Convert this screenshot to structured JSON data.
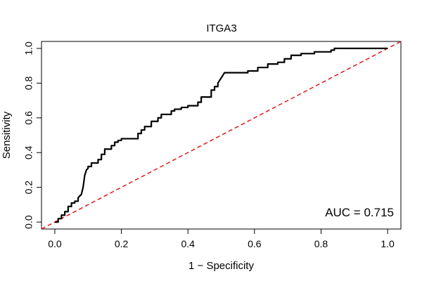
{
  "chart_data": {
    "type": "line",
    "title": "ITGA3",
    "xlabel": "1 − Specificity",
    "ylabel": "Sensitivity",
    "xlim": [
      -0.04,
      1.04
    ],
    "ylim": [
      -0.04,
      1.04
    ],
    "x_ticks": [
      0.0,
      0.2,
      0.4,
      0.6,
      0.8,
      1.0
    ],
    "x_tick_labels": [
      "0.0",
      "0.2",
      "0.4",
      "0.6",
      "0.8",
      "1.0"
    ],
    "y_ticks": [
      0.0,
      0.2,
      0.4,
      0.6,
      0.8,
      1.0
    ],
    "y_tick_labels": [
      "0.0",
      "0.2",
      "0.4",
      "0.6",
      "0.8",
      "1.0"
    ],
    "grid": false,
    "annotation": "AUC = 0.715",
    "series": [
      {
        "name": "ROC curve",
        "color": "#000000",
        "style": "solid",
        "x": [
          0.0,
          0.01,
          0.01,
          0.02,
          0.02,
          0.03,
          0.03,
          0.04,
          0.04,
          0.05,
          0.05,
          0.06,
          0.06,
          0.07,
          0.07,
          0.08,
          0.085,
          0.09,
          0.095,
          0.1,
          0.1,
          0.11,
          0.11,
          0.13,
          0.13,
          0.14,
          0.14,
          0.15,
          0.15,
          0.17,
          0.17,
          0.18,
          0.18,
          0.19,
          0.19,
          0.2,
          0.2,
          0.25,
          0.25,
          0.26,
          0.26,
          0.27,
          0.27,
          0.29,
          0.29,
          0.31,
          0.31,
          0.32,
          0.32,
          0.35,
          0.35,
          0.36,
          0.36,
          0.38,
          0.38,
          0.4,
          0.4,
          0.43,
          0.43,
          0.44,
          0.44,
          0.47,
          0.47,
          0.48,
          0.48,
          0.49,
          0.49,
          0.5,
          0.51,
          0.51,
          0.58,
          0.58,
          0.61,
          0.61,
          0.64,
          0.64,
          0.67,
          0.67,
          0.69,
          0.69,
          0.71,
          0.71,
          0.74,
          0.74,
          0.78,
          0.78,
          0.83,
          0.83,
          0.84,
          0.84,
          1.0
        ],
        "y": [
          0.0,
          0.0,
          0.02,
          0.02,
          0.04,
          0.04,
          0.06,
          0.06,
          0.09,
          0.09,
          0.11,
          0.11,
          0.12,
          0.12,
          0.14,
          0.16,
          0.2,
          0.27,
          0.3,
          0.31,
          0.32,
          0.32,
          0.34,
          0.34,
          0.36,
          0.36,
          0.39,
          0.39,
          0.42,
          0.42,
          0.44,
          0.44,
          0.46,
          0.46,
          0.47,
          0.47,
          0.48,
          0.48,
          0.51,
          0.51,
          0.53,
          0.53,
          0.55,
          0.55,
          0.58,
          0.58,
          0.6,
          0.6,
          0.62,
          0.62,
          0.64,
          0.64,
          0.65,
          0.65,
          0.66,
          0.66,
          0.67,
          0.67,
          0.69,
          0.69,
          0.72,
          0.72,
          0.76,
          0.76,
          0.78,
          0.78,
          0.8,
          0.83,
          0.86,
          0.86,
          0.86,
          0.87,
          0.87,
          0.89,
          0.89,
          0.91,
          0.91,
          0.92,
          0.92,
          0.94,
          0.94,
          0.96,
          0.96,
          0.97,
          0.97,
          0.98,
          0.98,
          0.99,
          0.99,
          1.0,
          1.0
        ]
      },
      {
        "name": "Reference diagonal",
        "color": "#e41a1c",
        "style": "dashed",
        "x": [
          -0.04,
          1.04
        ],
        "y": [
          -0.04,
          1.04
        ]
      }
    ]
  }
}
